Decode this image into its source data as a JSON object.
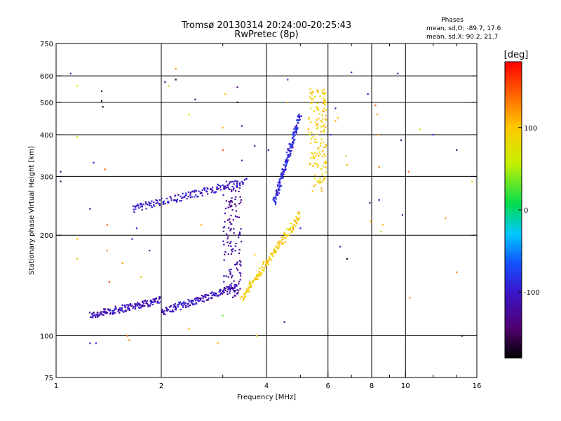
{
  "chart_data": {
    "type": "scatter",
    "title": "Tromsø 20130314 20:24:00-20:25:43",
    "subtitle": "RwPretec (8p)",
    "stats": {
      "heading": "Phases",
      "line_o": "mean, sd,O: -89.7, 17.6",
      "line_x": "mean, sd,X:  90.2, 21.7"
    },
    "xlabel": "Frequency [MHz]",
    "ylabel": "Stationary phase Virtual Height [km]",
    "x_scale": "log",
    "y_scale": "log",
    "xlim": [
      1,
      16
    ],
    "ylim": [
      75,
      750
    ],
    "xticks": [
      {
        "value": 1,
        "label": "1"
      },
      {
        "value": 2,
        "label": "2"
      },
      {
        "value": 4,
        "label": "4"
      },
      {
        "value": 6,
        "label": "6"
      },
      {
        "value": 8,
        "label": "8"
      },
      {
        "value": 10,
        "label": "10"
      },
      {
        "value": 16,
        "label": "16"
      }
    ],
    "x_gridlines": [
      2,
      4,
      6,
      8,
      10
    ],
    "x_minor_ticks": [
      3,
      5,
      7,
      9,
      12,
      14
    ],
    "yticks": [
      {
        "value": 75,
        "label": "75"
      },
      {
        "value": 100,
        "label": "100"
      },
      {
        "value": 200,
        "label": "200"
      },
      {
        "value": 300,
        "label": "300"
      },
      {
        "value": 400,
        "label": "400"
      },
      {
        "value": 500,
        "label": "500"
      },
      {
        "value": 600,
        "label": "600"
      },
      {
        "value": 750,
        "label": "750"
      }
    ],
    "y_gridlines": [
      100,
      200,
      300,
      400,
      500,
      600
    ],
    "grid": true,
    "colorbar": {
      "label": "[deg]",
      "range": [
        -180,
        180
      ],
      "ticks": [
        {
          "value": 100,
          "label": "100"
        },
        {
          "value": 0,
          "label": "0"
        },
        {
          "value": -100,
          "label": "-100"
        }
      ],
      "colormap": "rainbow (black-purple-blue-cyan-green-yellow-orange-red)"
    },
    "traces": [
      {
        "name": "O-mode low trace",
        "x_range": [
          1.25,
          2.0
        ],
        "height_range": [
          115,
          128
        ],
        "phase": -110
      },
      {
        "name": "O-mode rising trace",
        "x_range": [
          2.0,
          3.3
        ],
        "height_range": [
          118,
          140
        ],
        "phase": -105
      },
      {
        "name": "O-mode near-vertical cusp",
        "x": 3.2,
        "height_range": [
          130,
          290
        ],
        "phase": -120
      },
      {
        "name": "F-layer trace",
        "x_range": [
          1.65,
          3.5
        ],
        "height_range": [
          240,
          290
        ],
        "phase": -100
      },
      {
        "name": "X-mode trace",
        "x_range": [
          3.4,
          5.0
        ],
        "height_range": [
          130,
          230
        ],
        "phase": 95
      },
      {
        "name": "X-mode upper cusp",
        "x": 5.6,
        "height_range": [
          270,
          550
        ],
        "phase": 95
      },
      {
        "name": "upper cluster",
        "x_range": [
          4.2,
          5.0
        ],
        "height_range": [
          250,
          460
        ],
        "phase": -90
      }
    ],
    "scattered_points": [
      {
        "x": 1.03,
        "y": 310,
        "phase": -130
      },
      {
        "x": 1.03,
        "y": 290,
        "phase": -150
      },
      {
        "x": 1.1,
        "y": 610,
        "phase": -100
      },
      {
        "x": 1.15,
        "y": 560,
        "phase": 60
      },
      {
        "x": 1.15,
        "y": 395,
        "phase": 70
      },
      {
        "x": 1.15,
        "y": 170,
        "phase": 100
      },
      {
        "x": 1.15,
        "y": 195,
        "phase": 110
      },
      {
        "x": 1.25,
        "y": 240,
        "phase": -110
      },
      {
        "x": 1.25,
        "y": 95,
        "phase": -100
      },
      {
        "x": 1.28,
        "y": 330,
        "phase": -100
      },
      {
        "x": 1.35,
        "y": 540,
        "phase": -150
      },
      {
        "x": 1.35,
        "y": 505,
        "phase": -160
      },
      {
        "x": 1.36,
        "y": 485,
        "phase": -170
      },
      {
        "x": 1.38,
        "y": 315,
        "phase": 140
      },
      {
        "x": 1.4,
        "y": 215,
        "phase": 140
      },
      {
        "x": 1.4,
        "y": 180,
        "phase": 130
      },
      {
        "x": 1.42,
        "y": 145,
        "phase": 150
      },
      {
        "x": 1.6,
        "y": 100,
        "phase": 140
      },
      {
        "x": 1.62,
        "y": 97,
        "phase": 130
      },
      {
        "x": 1.55,
        "y": 165,
        "phase": 120
      },
      {
        "x": 1.7,
        "y": 210,
        "phase": -100
      },
      {
        "x": 1.75,
        "y": 150,
        "phase": 100
      },
      {
        "x": 1.65,
        "y": 195,
        "phase": -100
      },
      {
        "x": 1.85,
        "y": 180,
        "phase": -110
      },
      {
        "x": 2.05,
        "y": 575,
        "phase": -130
      },
      {
        "x": 2.1,
        "y": 560,
        "phase": 50
      },
      {
        "x": 2.2,
        "y": 630,
        "phase": 120
      },
      {
        "x": 2.2,
        "y": 585,
        "phase": -160
      },
      {
        "x": 2.5,
        "y": 510,
        "phase": -140
      },
      {
        "x": 2.4,
        "y": 460,
        "phase": 60
      },
      {
        "x": 2.4,
        "y": 105,
        "phase": 110
      },
      {
        "x": 2.6,
        "y": 215,
        "phase": 110
      },
      {
        "x": 2.9,
        "y": 95,
        "phase": 110
      },
      {
        "x": 3.0,
        "y": 115,
        "phase": 40
      },
      {
        "x": 3.0,
        "y": 420,
        "phase": 110
      },
      {
        "x": 3.0,
        "y": 360,
        "phase": 150
      },
      {
        "x": 3.05,
        "y": 530,
        "phase": 110
      },
      {
        "x": 3.3,
        "y": 555,
        "phase": -140
      },
      {
        "x": 3.3,
        "y": 500,
        "phase": -160
      },
      {
        "x": 3.4,
        "y": 425,
        "phase": -100
      },
      {
        "x": 3.4,
        "y": 335,
        "phase": -100
      },
      {
        "x": 3.7,
        "y": 370,
        "phase": -130
      },
      {
        "x": 3.7,
        "y": 175,
        "phase": 100
      },
      {
        "x": 3.75,
        "y": 100,
        "phase": 110
      },
      {
        "x": 4.05,
        "y": 360,
        "phase": -100
      },
      {
        "x": 4.25,
        "y": 250,
        "phase": -80
      },
      {
        "x": 4.5,
        "y": 110,
        "phase": -100
      },
      {
        "x": 4.6,
        "y": 585,
        "phase": -90
      },
      {
        "x": 4.6,
        "y": 500,
        "phase": 110
      },
      {
        "x": 5.0,
        "y": 210,
        "phase": -100
      },
      {
        "x": 5.5,
        "y": 380,
        "phase": 100
      },
      {
        "x": 6.1,
        "y": 400,
        "phase": -80
      },
      {
        "x": 6.3,
        "y": 480,
        "phase": -120
      },
      {
        "x": 6.4,
        "y": 450,
        "phase": 100
      },
      {
        "x": 6.3,
        "y": 440,
        "phase": 110
      },
      {
        "x": 6.5,
        "y": 185,
        "phase": -110
      },
      {
        "x": 6.8,
        "y": 170,
        "phase": -160
      },
      {
        "x": 7.0,
        "y": 615,
        "phase": -100
      },
      {
        "x": 6.75,
        "y": 345,
        "phase": 50
      },
      {
        "x": 6.8,
        "y": 325,
        "phase": 110
      },
      {
        "x": 7.8,
        "y": 530,
        "phase": -110
      },
      {
        "x": 7.9,
        "y": 250,
        "phase": -140
      },
      {
        "x": 7.95,
        "y": 220,
        "phase": 120
      },
      {
        "x": 8.2,
        "y": 490,
        "phase": 140
      },
      {
        "x": 8.3,
        "y": 460,
        "phase": 120
      },
      {
        "x": 8.35,
        "y": 400,
        "phase": 120
      },
      {
        "x": 8.4,
        "y": 320,
        "phase": 130
      },
      {
        "x": 8.4,
        "y": 255,
        "phase": -100
      },
      {
        "x": 8.5,
        "y": 205,
        "phase": 50
      },
      {
        "x": 8.6,
        "y": 215,
        "phase": 110
      },
      {
        "x": 9.5,
        "y": 610,
        "phase": -100
      },
      {
        "x": 9.7,
        "y": 385,
        "phase": -150
      },
      {
        "x": 9.8,
        "y": 230,
        "phase": -120
      },
      {
        "x": 10.2,
        "y": 310,
        "phase": 140
      },
      {
        "x": 10.3,
        "y": 130,
        "phase": 120
      },
      {
        "x": 11.0,
        "y": 415,
        "phase": 80
      },
      {
        "x": 12.0,
        "y": 400,
        "phase": -80
      },
      {
        "x": 13.0,
        "y": 225,
        "phase": 120
      },
      {
        "x": 14.0,
        "y": 360,
        "phase": -150
      },
      {
        "x": 14.0,
        "y": 155,
        "phase": 130
      },
      {
        "x": 14.5,
        "y": 100,
        "phase": -170
      },
      {
        "x": 15.5,
        "y": 290,
        "phase": 100
      },
      {
        "x": 1.3,
        "y": 95,
        "phase": -80
      }
    ]
  }
}
